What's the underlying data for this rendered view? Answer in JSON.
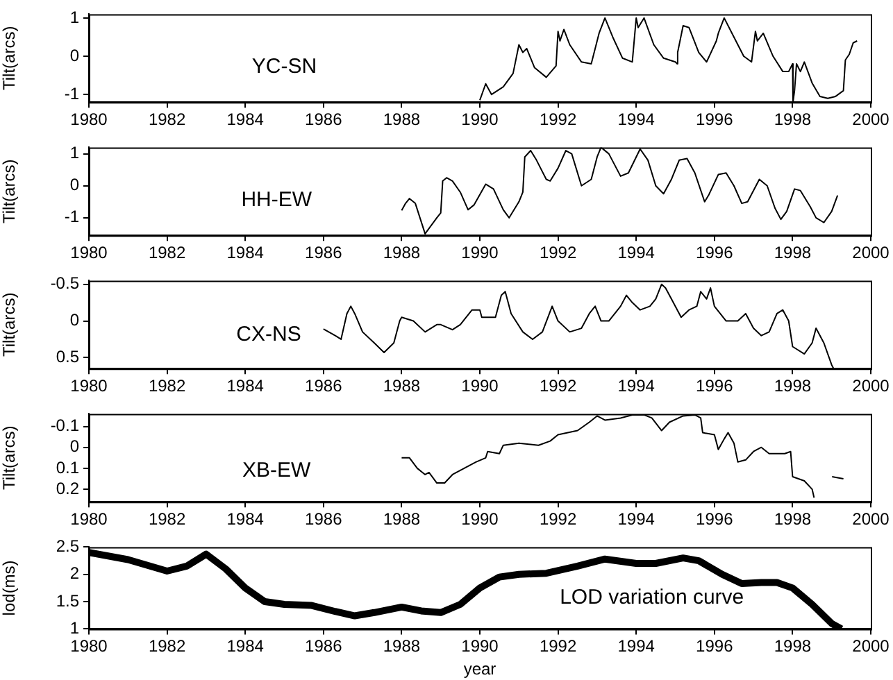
{
  "chart_data": [
    {
      "type": "line",
      "ylabel": "Tilt(arcs)",
      "annotations": [
        "YC-SN"
      ],
      "color": "#000000",
      "xlim": [
        1980,
        2000
      ],
      "xticks": [
        1980,
        1982,
        1984,
        1986,
        1988,
        1990,
        1992,
        1994,
        1996,
        1998,
        2000
      ],
      "ylim": [
        -1.2,
        1.1
      ],
      "yticks": [
        -1,
        0,
        1
      ],
      "grid": false,
      "x": [
        1990.0,
        1990.15,
        1990.3,
        1990.6,
        1990.85,
        1991.0,
        1991.1,
        1991.2,
        1991.4,
        1991.7,
        1991.95,
        1992.0,
        1992.05,
        1992.15,
        1992.3,
        1992.6,
        1992.85,
        1993.05,
        1993.2,
        1993.4,
        1993.65,
        1993.9,
        1994.0,
        1994.05,
        1994.2,
        1994.45,
        1994.7,
        1995.0,
        1995.05,
        1995.06,
        1995.2,
        1995.35,
        1995.6,
        1995.8,
        1996.05,
        1996.1,
        1996.25,
        1996.5,
        1996.75,
        1996.95,
        1997.05,
        1997.1,
        1997.25,
        1997.5,
        1997.75,
        1997.9,
        1998.0,
        1998.01,
        1998.05,
        1998.1,
        1998.2,
        1998.3,
        1998.5,
        1998.7,
        1998.9,
        1999.1,
        1999.3,
        1999.35,
        1999.45,
        1999.55,
        1999.65
      ],
      "values": [
        -1.15,
        -0.72,
        -1.0,
        -0.8,
        -0.45,
        0.3,
        0.1,
        0.2,
        -0.3,
        -0.55,
        -0.25,
        0.65,
        0.4,
        0.7,
        0.3,
        -0.15,
        -0.2,
        0.6,
        1.0,
        0.5,
        -0.05,
        -0.15,
        1.0,
        0.75,
        1.0,
        0.3,
        -0.05,
        -0.15,
        -0.2,
        0.1,
        0.8,
        0.75,
        0.1,
        -0.15,
        0.4,
        0.6,
        1.0,
        0.5,
        0.0,
        -0.15,
        0.65,
        0.4,
        0.6,
        0.0,
        -0.4,
        -0.4,
        -0.2,
        -1.2,
        -0.9,
        -0.2,
        -0.4,
        -0.15,
        -0.7,
        -1.05,
        -1.1,
        -1.05,
        -0.9,
        -0.1,
        0.05,
        0.35,
        0.4
      ]
    },
    {
      "type": "line",
      "ylabel": "Tilt(arcs)",
      "annotations": [
        "HH-EW"
      ],
      "color": "#000000",
      "xlim": [
        1980,
        2000
      ],
      "xticks": [
        1980,
        1982,
        1984,
        1986,
        1988,
        1990,
        1992,
        1994,
        1996,
        1998,
        2000
      ],
      "ylim": [
        -1.55,
        1.2
      ],
      "yticks": [
        -1,
        0,
        1
      ],
      "grid": false,
      "x": [
        1988.0,
        1988.1,
        1988.2,
        1988.35,
        1988.6,
        1988.9,
        1989.0,
        1989.05,
        1989.15,
        1989.3,
        1989.5,
        1989.7,
        1989.85,
        1990.15,
        1990.35,
        1990.6,
        1990.75,
        1991.0,
        1991.1,
        1991.15,
        1991.3,
        1991.45,
        1991.7,
        1991.8,
        1992.0,
        1992.2,
        1992.35,
        1992.6,
        1992.85,
        1993.0,
        1993.1,
        1993.3,
        1993.6,
        1993.8,
        1994.1,
        1994.3,
        1994.5,
        1994.7,
        1994.9,
        1995.1,
        1995.3,
        1995.5,
        1995.75,
        1995.85,
        1996.1,
        1996.3,
        1996.5,
        1996.7,
        1996.85,
        1997.15,
        1997.35,
        1997.55,
        1997.7,
        1997.85,
        1998.05,
        1998.2,
        1998.45,
        1998.6,
        1998.8,
        1999.0,
        1999.15
      ],
      "values": [
        -0.77,
        -0.55,
        -0.4,
        -0.55,
        -1.5,
        -1.0,
        -0.85,
        0.15,
        0.25,
        0.15,
        -0.2,
        -0.75,
        -0.6,
        0.05,
        -0.1,
        -0.75,
        -1.0,
        -0.5,
        -0.2,
        0.9,
        1.1,
        0.8,
        0.2,
        0.15,
        0.55,
        1.1,
        1.0,
        0.0,
        0.2,
        0.9,
        1.2,
        1.0,
        0.3,
        0.4,
        1.15,
        0.8,
        0.0,
        -0.25,
        0.2,
        0.8,
        0.85,
        0.4,
        -0.5,
        -0.3,
        0.35,
        0.4,
        0.0,
        -0.55,
        -0.5,
        0.2,
        0.0,
        -0.7,
        -1.05,
        -0.8,
        -0.1,
        -0.15,
        -0.65,
        -1.0,
        -1.15,
        -0.8,
        -0.3
      ]
    },
    {
      "type": "line",
      "ylabel": "Tilt(arcs)",
      "annotations": [
        "CX-NS"
      ],
      "color": "#000000",
      "xlim": [
        1980,
        2000
      ],
      "xticks": [
        1980,
        1982,
        1984,
        1986,
        1988,
        1990,
        1992,
        1994,
        1996,
        1998,
        2000
      ],
      "ylim": [
        0.65,
        -0.55
      ],
      "yticks": [
        -0.5,
        0,
        0.5
      ],
      "grid": false,
      "x": [
        1986.0,
        1986.3,
        1986.45,
        1986.6,
        1986.7,
        1986.8,
        1987.0,
        1987.3,
        1987.55,
        1987.8,
        1987.95,
        1988.0,
        1988.3,
        1988.6,
        1988.9,
        1989.0,
        1989.3,
        1989.5,
        1989.8,
        1990.0,
        1990.05,
        1990.4,
        1990.55,
        1990.65,
        1990.8,
        1991.1,
        1991.35,
        1991.6,
        1991.85,
        1992.0,
        1992.3,
        1992.6,
        1992.8,
        1992.95,
        1993.1,
        1993.3,
        1993.6,
        1993.75,
        1993.9,
        1994.1,
        1994.35,
        1994.5,
        1994.65,
        1994.75,
        1994.9,
        1995.15,
        1995.35,
        1995.55,
        1995.65,
        1995.8,
        1995.9,
        1996.0,
        1996.3,
        1996.6,
        1996.8,
        1997.0,
        1997.2,
        1997.4,
        1997.6,
        1997.75,
        1997.9,
        1998.0,
        1998.3,
        1998.5,
        1998.6,
        1998.8,
        1999.0,
        1999.05
      ],
      "values": [
        0.11,
        0.2,
        0.25,
        -0.1,
        -0.2,
        -0.1,
        0.15,
        0.3,
        0.43,
        0.3,
        0.0,
        -0.05,
        0.0,
        0.15,
        0.05,
        0.05,
        0.12,
        0.05,
        -0.15,
        -0.15,
        -0.05,
        -0.05,
        -0.35,
        -0.4,
        -0.1,
        0.15,
        0.25,
        0.15,
        -0.2,
        0.0,
        0.15,
        0.1,
        -0.1,
        -0.2,
        0.0,
        0.0,
        -0.2,
        -0.35,
        -0.25,
        -0.15,
        -0.2,
        -0.3,
        -0.5,
        -0.45,
        -0.3,
        -0.05,
        -0.15,
        -0.2,
        -0.4,
        -0.3,
        -0.45,
        -0.2,
        0.0,
        0.0,
        -0.1,
        0.1,
        0.2,
        0.15,
        -0.1,
        -0.15,
        0.0,
        0.35,
        0.45,
        0.3,
        0.1,
        0.3,
        0.6,
        0.65
      ]
    },
    {
      "type": "line",
      "ylabel": "Tilt(arcs)",
      "annotations": [
        "XB-EW"
      ],
      "color": "#000000",
      "xlim": [
        1980,
        2000
      ],
      "xticks": [
        1980,
        1982,
        1984,
        1986,
        1988,
        1990,
        1992,
        1994,
        1996,
        1998,
        2000
      ],
      "ylim": [
        0.26,
        -0.16
      ],
      "yticks": [
        -0.1,
        0,
        0.1,
        0.2
      ],
      "grid": false,
      "x": [
        1988.0,
        1988.2,
        1988.4,
        1988.6,
        1988.7,
        1988.9,
        1989.1,
        1989.3,
        1989.6,
        1989.9,
        1990.15,
        1990.2,
        1990.5,
        1990.6,
        1991.0,
        1991.5,
        1991.8,
        1992.0,
        1992.5,
        1992.8,
        1993.0,
        1993.2,
        1993.6,
        1993.9,
        1994.2,
        1994.4,
        1994.65,
        1994.85,
        1995.2,
        1995.5,
        1995.65,
        1995.7,
        1996.0,
        1996.1,
        1996.25,
        1996.35,
        1996.5,
        1996.6,
        1996.8,
        1997.0,
        1997.2,
        1997.4,
        1997.8,
        1997.95,
        1998.0,
        1998.3,
        1998.5,
        1998.55,
        1998.9,
        1999.0,
        1999.01,
        1999.3
      ],
      "values": [
        0.05,
        0.05,
        0.1,
        0.13,
        0.12,
        0.17,
        0.17,
        0.13,
        0.1,
        0.07,
        0.05,
        0.02,
        0.03,
        -0.01,
        -0.02,
        -0.01,
        -0.03,
        -0.06,
        -0.08,
        -0.12,
        -0.15,
        -0.13,
        -0.14,
        -0.155,
        -0.155,
        -0.14,
        -0.08,
        -0.12,
        -0.15,
        -0.155,
        -0.14,
        -0.07,
        -0.06,
        0.01,
        -0.04,
        -0.07,
        -0.02,
        0.07,
        0.06,
        0.02,
        0.0,
        0.03,
        0.03,
        0.02,
        0.14,
        0.16,
        0.2,
        0.24,
        null,
        null,
        0.14,
        0.15
      ]
    },
    {
      "type": "line",
      "xlabel": "year",
      "ylabel": "lod(ms)",
      "annotations": [
        "LOD variation curve"
      ],
      "color": "#000000",
      "xlim": [
        1980,
        2000
      ],
      "xticks": [
        1980,
        1982,
        1984,
        1986,
        1988,
        1990,
        1992,
        1994,
        1996,
        1998,
        2000
      ],
      "ylim": [
        1,
        2.5
      ],
      "yticks": [
        1,
        1.5,
        2,
        2.5
      ],
      "grid": false,
      "x": [
        1980.0,
        1981.0,
        1982.0,
        1982.5,
        1983.0,
        1983.5,
        1984.0,
        1984.5,
        1985.0,
        1985.7,
        1986.3,
        1986.8,
        1987.3,
        1988.0,
        1988.5,
        1989.0,
        1989.5,
        1990.0,
        1990.5,
        1991.0,
        1991.7,
        1992.5,
        1993.2,
        1994.0,
        1994.5,
        1995.2,
        1995.6,
        1996.2,
        1996.7,
        1997.2,
        1997.6,
        1998.0,
        1998.5,
        1999.0,
        1999.25
      ],
      "values": [
        2.4,
        2.27,
        2.06,
        2.15,
        2.37,
        2.1,
        1.75,
        1.5,
        1.45,
        1.43,
        1.32,
        1.24,
        1.3,
        1.4,
        1.33,
        1.3,
        1.45,
        1.75,
        1.95,
        2.0,
        2.02,
        2.15,
        2.28,
        2.2,
        2.2,
        2.3,
        2.25,
        2.0,
        1.83,
        1.85,
        1.85,
        1.75,
        1.45,
        1.1,
        1.0
      ]
    }
  ]
}
